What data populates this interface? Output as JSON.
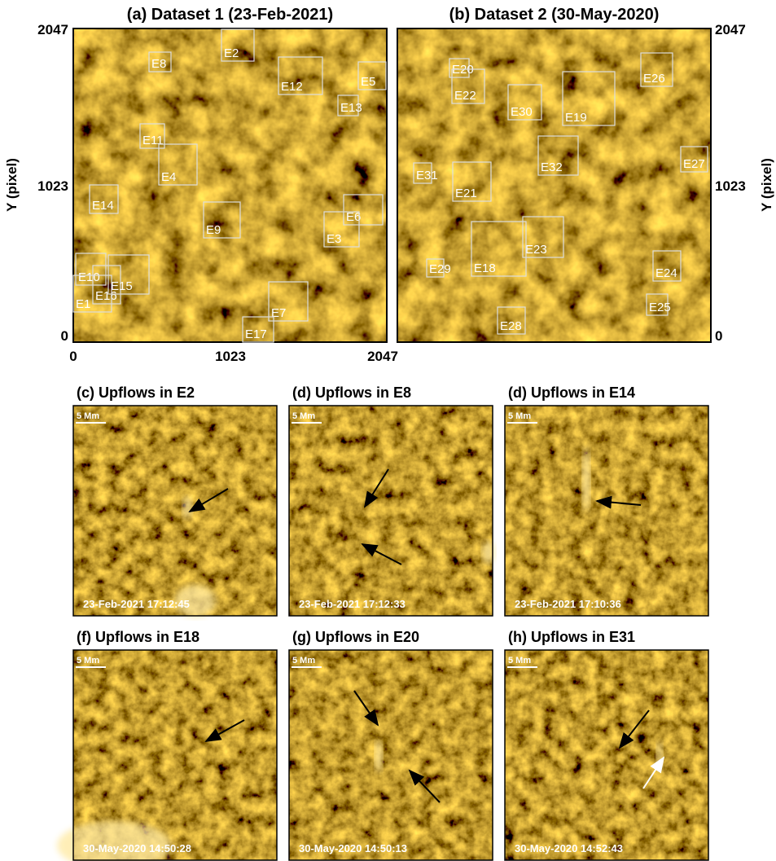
{
  "top_panels": [
    {
      "title": "(a) Dataset 1 (23-Feb-2021)",
      "regions": [
        "E2",
        "E8",
        "E12",
        "E5",
        "E13",
        "E11",
        "E4",
        "E14",
        "E9",
        "E6",
        "E3",
        "E10",
        "E16",
        "E15",
        "E1",
        "E7",
        "E17"
      ]
    },
    {
      "title": "(b) Dataset 2 (30-May-2020)",
      "regions": [
        "E20",
        "E22",
        "E30",
        "E19",
        "E26",
        "E27",
        "E32",
        "E31",
        "E21",
        "E23",
        "E18",
        "E29",
        "E24",
        "E25",
        "E28"
      ]
    }
  ],
  "y_label_left": "Y (pixel)",
  "y_label_right": "Y (pixel)",
  "y_ticks_left": [
    "2047",
    "1023",
    "0"
  ],
  "y_ticks_right": [
    "2047",
    "1023",
    "0"
  ],
  "x_ticks": [
    "0",
    "1023",
    "2047"
  ],
  "zoom_panels": [
    {
      "title": "(c) Upflows in E2",
      "scale": "5 Mm",
      "time": "23-Feb-2021 17:12:45"
    },
    {
      "title": "(d) Upflows in E8",
      "scale": "5 Mm",
      "time": "23-Feb-2021 17:12:33"
    },
    {
      "title": "(d) Upflows in E14",
      "scale": "5 Mm",
      "time": "23-Feb-2021 17:10:36"
    },
    {
      "title": "(f) Upflows in E18",
      "scale": "5 Mm",
      "time": "30-May-2020 14:50:28"
    },
    {
      "title": "(g) Upflows in E20",
      "scale": "5 Mm",
      "time": "30-May-2020 14:50:13"
    },
    {
      "title": "(h) Upflows in E31",
      "scale": "5 Mm",
      "time": "30-May-2020 14:52:43"
    }
  ]
}
